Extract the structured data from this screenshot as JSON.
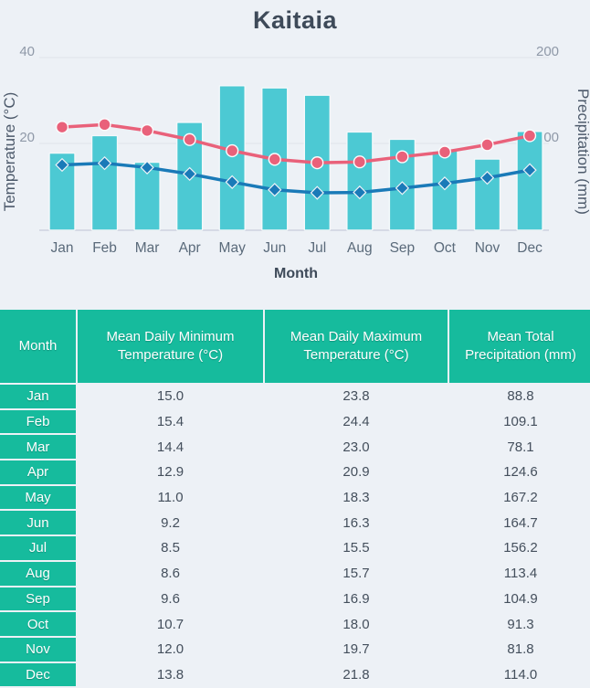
{
  "title": "Kaitaia",
  "chart_data": {
    "type": "bar+line",
    "title": "Kaitaia",
    "categories": [
      "Jan",
      "Feb",
      "Mar",
      "Apr",
      "May",
      "Jun",
      "Jul",
      "Aug",
      "Sep",
      "Oct",
      "Nov",
      "Dec"
    ],
    "x_axis_label": "Month",
    "left_axis": {
      "label": "Temperature (°C)",
      "ticks": [
        "20",
        "40"
      ],
      "tick_values": [
        20,
        40
      ],
      "range": [
        0,
        44
      ]
    },
    "right_axis": {
      "label": "Precipitation (mm)",
      "ticks": [
        "100",
        "200"
      ],
      "tick_values": [
        100,
        200
      ],
      "range": [
        0,
        220
      ]
    },
    "legend": "none",
    "grid": true,
    "series": [
      {
        "name": "Mean Total Precipitation (mm)",
        "type": "bar",
        "axis": "right",
        "color": "#4cc9d3",
        "values": [
          88.8,
          109.1,
          78.1,
          124.6,
          167.2,
          164.7,
          156.2,
          113.4,
          104.9,
          91.3,
          81.8,
          114.0
        ]
      },
      {
        "name": "Mean Daily Maximum Temperature (°C)",
        "type": "line",
        "marker": "circle",
        "axis": "left",
        "color": "#e9617a",
        "values": [
          23.8,
          24.4,
          23.0,
          20.9,
          18.3,
          16.3,
          15.5,
          15.7,
          16.9,
          18.0,
          19.7,
          21.8
        ]
      },
      {
        "name": "Mean Daily Minimum Temperature (°C)",
        "type": "line",
        "marker": "diamond",
        "axis": "left",
        "color": "#1a7ab8",
        "values": [
          15.0,
          15.4,
          14.4,
          12.9,
          11.0,
          9.2,
          8.5,
          8.6,
          9.6,
          10.7,
          12.0,
          13.8
        ]
      }
    ]
  },
  "table": {
    "headers": [
      "Month",
      "Mean Daily Minimum Temperature (°C)",
      "Mean Daily Maximum Temperature (°C)",
      "Mean Total Precipitation (mm)"
    ],
    "rows": [
      [
        "Jan",
        "15.0",
        "23.8",
        "88.8"
      ],
      [
        "Feb",
        "15.4",
        "24.4",
        "109.1"
      ],
      [
        "Mar",
        "14.4",
        "23.0",
        "78.1"
      ],
      [
        "Apr",
        "12.9",
        "20.9",
        "124.6"
      ],
      [
        "May",
        "11.0",
        "18.3",
        "167.2"
      ],
      [
        "Jun",
        "9.2",
        "16.3",
        "164.7"
      ],
      [
        "Jul",
        "8.5",
        "15.5",
        "156.2"
      ],
      [
        "Aug",
        "8.6",
        "15.7",
        "113.4"
      ],
      [
        "Sep",
        "9.6",
        "16.9",
        "104.9"
      ],
      [
        "Oct",
        "10.7",
        "18.0",
        "91.3"
      ],
      [
        "Nov",
        "12.0",
        "19.7",
        "81.8"
      ],
      [
        "Dec",
        "13.8",
        "21.8",
        "114.0"
      ]
    ]
  },
  "colors": {
    "background": "#edf1f6",
    "bar": "#4cc9d3",
    "max_line": "#e9617a",
    "min_line": "#1a7ab8",
    "table_header": "#16bb9d",
    "row_alt": "#e7f7f2",
    "title_text": "#3e4a59",
    "tick_text": "#8f99a8",
    "axis_title_text": "#4d5a6b"
  }
}
